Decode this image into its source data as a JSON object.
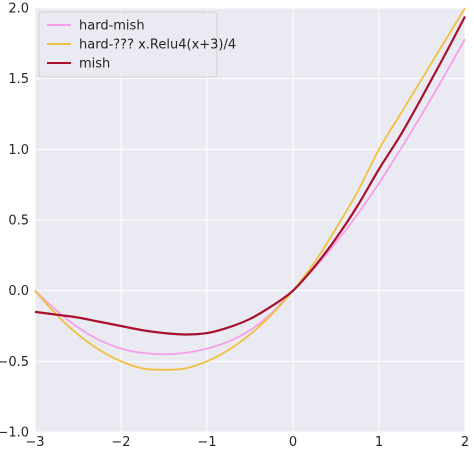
{
  "chart_data": {
    "type": "line",
    "title": "",
    "xlabel": "",
    "ylabel": "",
    "xlim": [
      -3,
      2
    ],
    "ylim": [
      -1.0,
      2.0
    ],
    "xticks": [
      -3,
      -2,
      -1,
      0,
      1,
      2
    ],
    "xtick_labels": [
      "−3",
      "−2",
      "−1",
      "0",
      "1",
      "2"
    ],
    "yticks": [
      -1.0,
      -0.5,
      0.0,
      0.5,
      1.0,
      1.5,
      2.0
    ],
    "ytick_labels": [
      "−1.0",
      "−0.5",
      "0.0",
      "0.5",
      "1.0",
      "1.5",
      "2.0"
    ],
    "grid": true,
    "legend_position": "top-left",
    "x": [
      -3.0,
      -2.75,
      -2.5,
      -2.25,
      -2.0,
      -1.75,
      -1.5,
      -1.25,
      -1.0,
      -0.75,
      -0.5,
      -0.25,
      0.0,
      0.25,
      0.5,
      0.75,
      1.0,
      1.25,
      1.5,
      1.75,
      2.0
    ],
    "series": [
      {
        "name": "hard-mish",
        "color": "#f5a0e8",
        "values": [
          0.0,
          -0.14,
          -0.26,
          -0.35,
          -0.41,
          -0.44,
          -0.45,
          -0.44,
          -0.41,
          -0.36,
          -0.28,
          -0.16,
          0.0,
          0.16,
          0.34,
          0.54,
          0.76,
          1.0,
          1.25,
          1.51,
          1.78
        ]
      },
      {
        "name": "hard-??? x.Relu4(x+3)/4",
        "color": "#f0c040",
        "values": [
          0.0,
          -0.17,
          -0.31,
          -0.42,
          -0.5,
          -0.55,
          -0.56,
          -0.55,
          -0.5,
          -0.42,
          -0.31,
          -0.17,
          0.0,
          0.2,
          0.44,
          0.7,
          1.0,
          1.25,
          1.5,
          1.75,
          2.0
        ]
      },
      {
        "name": "mish",
        "color": "#a8102e",
        "values": [
          -0.15,
          -0.17,
          -0.19,
          -0.22,
          -0.25,
          -0.28,
          -0.3,
          -0.31,
          -0.3,
          -0.26,
          -0.2,
          -0.11,
          0.0,
          0.17,
          0.37,
          0.6,
          0.86,
          1.1,
          1.37,
          1.65,
          1.94
        ]
      }
    ]
  },
  "colors": {
    "plot_background": "#eaeaf2",
    "grid": "#ffffff",
    "tick_text": "#262626"
  }
}
